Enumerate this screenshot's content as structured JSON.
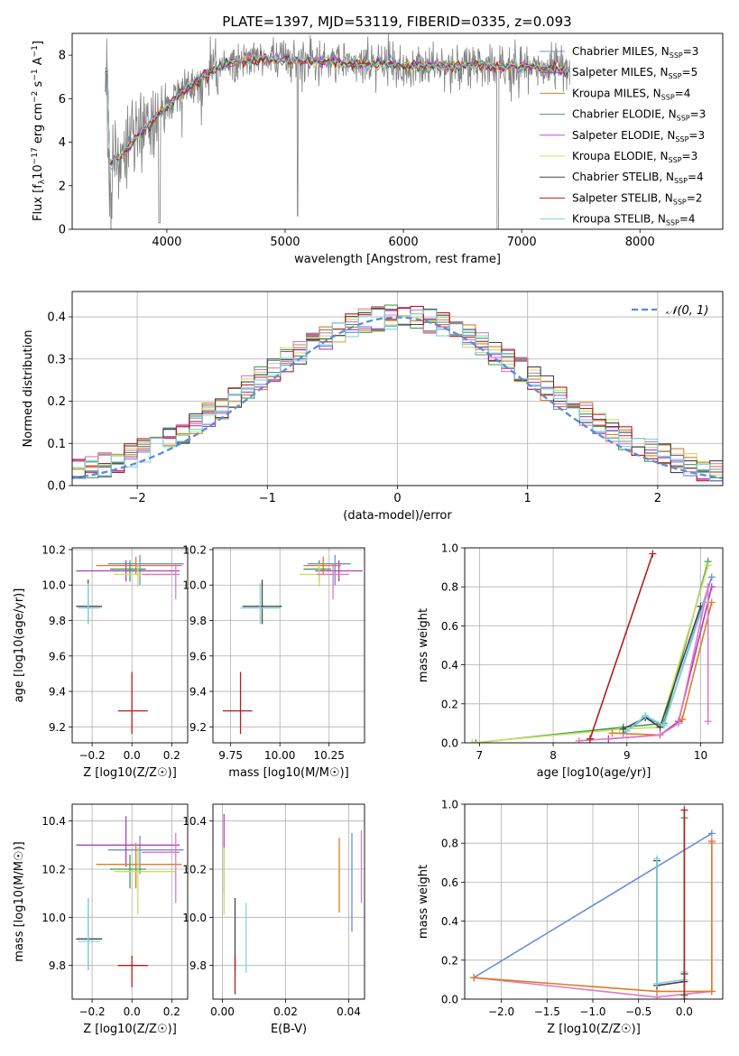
{
  "figure_title": "PLATE=1397, MJD=53119, FIBERID=0335, z=0.093",
  "colors": {
    "chabrier_miles": "#6a8fd8",
    "salpeter_miles": "#b03fb8",
    "kroupa_miles": "#e07b24",
    "chabrier_elodie": "#3f9b5a",
    "salpeter_elodie": "#c44fd0",
    "kroupa_elodie": "#c8e060",
    "chabrier_stelib": "#444444",
    "salpeter_stelib": "#b51e1e",
    "kroupa_stelib": "#7fd4e0",
    "pink": "#e377c2",
    "data": "#808080",
    "normal": "#5b8bd6"
  },
  "chart_data": [
    {
      "id": "spectrum",
      "type": "line",
      "title": "PLATE=1397, MJD=53119, FIBERID=0335, z=0.093",
      "xlabel": "wavelength [Angstrom, rest frame]",
      "ylabel": "Flux [f_λ 10^-17 erg cm^-2 s^-1 A^-1]",
      "xlim": [
        3200,
        8700
      ],
      "ylim": [
        0,
        9
      ],
      "xticks": [
        "4000",
        "5000",
        "6000",
        "7000",
        "8000"
      ],
      "yticks": [
        "0",
        "2",
        "4",
        "6",
        "8"
      ],
      "grid": false,
      "legend_position": "upper right",
      "series": [
        {
          "name": "Chabrier MILES, N_SSP=3",
          "color": "#6a8fd8"
        },
        {
          "name": "Salpeter MILES, N_SSP=5",
          "color": "#b03fb8"
        },
        {
          "name": "Kroupa MILES, N_SSP=4",
          "color": "#e07b24"
        },
        {
          "name": "Chabrier ELODIE, N_SSP=3",
          "color": "#3f9b5a"
        },
        {
          "name": "Salpeter ELODIE, N_SSP=3",
          "color": "#c44fd0"
        },
        {
          "name": "Kroupa ELODIE, N_SSP=3",
          "color": "#c8e060"
        },
        {
          "name": "Chabrier STELIB, N_SSP=4",
          "color": "#444444"
        },
        {
          "name": "Salpeter STELIB, N_SSP=2",
          "color": "#b51e1e"
        },
        {
          "name": "Kroupa STELIB, N_SSP=4",
          "color": "#7fd4e0"
        }
      ],
      "continuum": {
        "x": [
          3500,
          3600,
          3700,
          3800,
          3900,
          4000,
          4100,
          4200,
          4300,
          4400,
          4500,
          4600,
          4800,
          5000,
          5200,
          5400,
          5600,
          5800,
          6000,
          6200,
          6400,
          6600,
          6800,
          7000,
          7200,
          7400
        ],
        "y": [
          3.0,
          3.3,
          3.9,
          4.6,
          5.1,
          5.6,
          6.2,
          6.6,
          7.0,
          7.3,
          7.6,
          7.7,
          7.8,
          7.8,
          7.7,
          7.7,
          7.6,
          7.6,
          7.5,
          7.5,
          7.5,
          7.5,
          7.5,
          7.5,
          7.4,
          7.3
        ]
      }
    },
    {
      "id": "residuals",
      "type": "bar",
      "xlabel": "(data-model)/error",
      "ylabel": "Normed distribution",
      "xlim": [
        -2.5,
        2.5
      ],
      "ylim": [
        0,
        0.46
      ],
      "xticks": [
        "−2",
        "−1",
        "0",
        "1",
        "2"
      ],
      "yticks": [
        "0.0",
        "0.1",
        "0.2",
        "0.3",
        "0.4"
      ],
      "grid": true,
      "legend_position": "upper right",
      "legend": "𝒩(0, 1)",
      "bin_width": 0.1
    },
    {
      "id": "age_vs_Z",
      "type": "scatter",
      "xlabel": "Z [log10(Z/Z☉)]",
      "ylabel": "age  [log10(age/yr)]",
      "xlim": [
        -0.3,
        0.28
      ],
      "ylim": [
        9.11,
        10.21
      ],
      "xticks": [
        "−0.2",
        "0.0",
        "0.2"
      ],
      "yticks": [
        "9.2",
        "9.4",
        "9.6",
        "9.8",
        "10.0",
        "10.2"
      ],
      "grid": true,
      "points": [
        {
          "x": 0.04,
          "y": 10.12,
          "xerr": [
            0.16,
            0.22
          ],
          "yerr": [
            0.12,
            0.05
          ],
          "color": "#6a8fd8"
        },
        {
          "x": -0.03,
          "y": 10.08,
          "xerr": [
            0.25,
            0.27
          ],
          "yerr": [
            0.06,
            0.06
          ],
          "color": "#b03fb8"
        },
        {
          "x": 0.02,
          "y": 10.11,
          "xerr": [
            0.2,
            0.23
          ],
          "yerr": [
            0.05,
            0.05
          ],
          "color": "#e07b24"
        },
        {
          "x": -0.01,
          "y": 10.09,
          "xerr": [
            0.1,
            0.08
          ],
          "yerr": [
            0.07,
            0.05
          ],
          "color": "#3f9b5a"
        },
        {
          "x": 0.03,
          "y": 10.06,
          "xerr": [
            0.12,
            0.19
          ],
          "yerr": [
            0.07,
            0.06
          ],
          "color": "#c8e060"
        },
        {
          "x": 0.22,
          "y": 10.06,
          "xerr": [
            0.17,
            0.02
          ],
          "yerr": [
            0.14,
            0.06
          ],
          "color": "#e377c2"
        },
        {
          "x": -0.22,
          "y": 9.88,
          "xerr": [
            0.06,
            0.07
          ],
          "yerr": [
            0.1,
            0.15
          ],
          "color": "#444444"
        },
        {
          "x": -0.22,
          "y": 9.87,
          "xerr": [
            0.05,
            0.06
          ],
          "yerr": [
            0.09,
            0.14
          ],
          "color": "#7fd4e0"
        },
        {
          "x": 0.0,
          "y": 9.29,
          "xerr": [
            0.07,
            0.08
          ],
          "yerr": [
            0.13,
            0.22
          ],
          "color": "#b51e1e"
        }
      ]
    },
    {
      "id": "age_vs_mass",
      "type": "scatter",
      "xlabel": "mass [log10(M/M☉)]",
      "ylabel": "",
      "xlim": [
        9.66,
        10.43
      ],
      "ylim": [
        9.11,
        10.21
      ],
      "xticks": [
        "9.75",
        "10.00",
        "10.25"
      ],
      "yticks": [
        "9.2",
        "9.4",
        "9.6",
        "9.8",
        "10.0",
        "10.2"
      ],
      "grid": true,
      "points": [
        {
          "x": 10.28,
          "y": 10.12,
          "xerr": [
            0.14,
            0.08
          ],
          "yerr": [
            0.12,
            0.05
          ],
          "color": "#6a8fd8"
        },
        {
          "x": 10.3,
          "y": 10.08,
          "xerr": [
            0.12,
            0.12
          ],
          "yerr": [
            0.06,
            0.06
          ],
          "color": "#b03fb8"
        },
        {
          "x": 10.22,
          "y": 10.11,
          "xerr": [
            0.1,
            0.09
          ],
          "yerr": [
            0.05,
            0.05
          ],
          "color": "#e07b24"
        },
        {
          "x": 10.2,
          "y": 10.09,
          "xerr": [
            0.08,
            0.06
          ],
          "yerr": [
            0.07,
            0.05
          ],
          "color": "#3f9b5a"
        },
        {
          "x": 10.2,
          "y": 10.06,
          "xerr": [
            0.1,
            0.1
          ],
          "yerr": [
            0.07,
            0.06
          ],
          "color": "#c8e060"
        },
        {
          "x": 10.27,
          "y": 10.06,
          "xerr": [
            0.08,
            0.08
          ],
          "yerr": [
            0.14,
            0.06
          ],
          "color": "#e377c2"
        },
        {
          "x": 9.91,
          "y": 9.88,
          "xerr": [
            0.1,
            0.1
          ],
          "yerr": [
            0.1,
            0.15
          ],
          "color": "#444444"
        },
        {
          "x": 9.9,
          "y": 9.87,
          "xerr": [
            0.1,
            0.1
          ],
          "yerr": [
            0.09,
            0.14
          ],
          "color": "#7fd4e0"
        },
        {
          "x": 9.8,
          "y": 9.29,
          "xerr": [
            0.09,
            0.06
          ],
          "yerr": [
            0.13,
            0.22
          ],
          "color": "#b51e1e"
        }
      ]
    },
    {
      "id": "massweight_vs_age",
      "type": "line",
      "xlabel": "age  [log10(age/yr)]",
      "ylabel": "mass weight",
      "xlim": [
        6.8,
        10.3
      ],
      "ylim": [
        0,
        1
      ],
      "xticks": [
        "7",
        "8",
        "9",
        "10"
      ],
      "yticks": [
        "0.0",
        "0.2",
        "0.4",
        "0.6",
        "0.8",
        "1.0"
      ],
      "grid": true,
      "series": [
        {
          "color": "#6a8fd8",
          "x": [
            8.95,
            9.25,
            9.5,
            10.15
          ],
          "y": [
            0.05,
            0.13,
            0.09,
            0.85
          ]
        },
        {
          "color": "#3f9b5a",
          "x": [
            6.95,
            8.95,
            9.5,
            10.1
          ],
          "y": [
            0.0,
            0.08,
            0.1,
            0.93
          ]
        },
        {
          "color": "#c8e060",
          "x": [
            6.9,
            8.9,
            9.45,
            10.1
          ],
          "y": [
            0.0,
            0.07,
            0.08,
            0.91
          ]
        },
        {
          "color": "#444444",
          "x": [
            8.95,
            9.25,
            9.45,
            10.0
          ],
          "y": [
            0.07,
            0.13,
            0.08,
            0.7
          ]
        },
        {
          "color": "#7fd4e0",
          "x": [
            9.0,
            9.25,
            9.5,
            10.05
          ],
          "y": [
            0.06,
            0.14,
            0.09,
            0.72
          ]
        },
        {
          "color": "#e07b24",
          "x": [
            8.8,
            9.45,
            9.75,
            10.15
          ],
          "y": [
            0.05,
            0.04,
            0.12,
            0.72
          ]
        },
        {
          "color": "#b03fb8",
          "x": [
            8.75,
            9.45,
            9.7,
            10.15
          ],
          "y": [
            0.02,
            0.04,
            0.11,
            0.8
          ]
        },
        {
          "color": "#e377c2",
          "x": [
            8.35,
            9.45,
            9.7,
            10.1,
            10.1
          ],
          "y": [
            0.01,
            0.04,
            0.1,
            0.8,
            0.11
          ]
        },
        {
          "color": "#b51e1e",
          "x": [
            8.5,
            9.35
          ],
          "y": [
            0.02,
            0.97
          ]
        }
      ]
    },
    {
      "id": "mass_vs_Z",
      "type": "scatter",
      "xlabel": "Z [log10(Z/Z☉)]",
      "ylabel": "mass [log10(M/M☉)]",
      "xlim": [
        -0.3,
        0.28
      ],
      "ylim": [
        9.66,
        10.47
      ],
      "xticks": [
        "−0.2",
        "0.0",
        "0.2"
      ],
      "yticks": [
        "9.8",
        "10.0",
        "10.2",
        "10.4"
      ],
      "grid": true,
      "points": [
        {
          "x": 0.04,
          "y": 10.28,
          "xerr": [
            0.16,
            0.22
          ],
          "yerr": [
            0.1,
            0.06
          ],
          "color": "#6a8fd8"
        },
        {
          "x": -0.03,
          "y": 10.3,
          "xerr": [
            0.25,
            0.27
          ],
          "yerr": [
            0.09,
            0.12
          ],
          "color": "#b03fb8"
        },
        {
          "x": 0.02,
          "y": 10.22,
          "xerr": [
            0.2,
            0.23
          ],
          "yerr": [
            0.1,
            0.09
          ],
          "color": "#e07b24"
        },
        {
          "x": -0.01,
          "y": 10.2,
          "xerr": [
            0.1,
            0.08
          ],
          "yerr": [
            0.08,
            0.06
          ],
          "color": "#3f9b5a"
        },
        {
          "x": 0.03,
          "y": 10.19,
          "xerr": [
            0.12,
            0.19
          ],
          "yerr": [
            0.18,
            0.1
          ],
          "color": "#c8e060"
        },
        {
          "x": 0.22,
          "y": 10.27,
          "xerr": [
            0.17,
            0.02
          ],
          "yerr": [
            0.21,
            0.08
          ],
          "color": "#e377c2"
        },
        {
          "x": -0.22,
          "y": 9.91,
          "xerr": [
            0.06,
            0.07
          ],
          "yerr": [
            0.13,
            0.17
          ],
          "color": "#444444"
        },
        {
          "x": -0.22,
          "y": 9.9,
          "xerr": [
            0.05,
            0.06
          ],
          "yerr": [
            0.12,
            0.18
          ],
          "color": "#7fd4e0"
        },
        {
          "x": 0.0,
          "y": 9.8,
          "xerr": [
            0.07,
            0.08
          ],
          "yerr": [
            0.09,
            0.04
          ],
          "color": "#b51e1e"
        }
      ]
    },
    {
      "id": "mass_vs_ebv",
      "type": "scatter",
      "xlabel": "E(B-V)",
      "ylabel": "",
      "xlim": [
        -0.003,
        0.045
      ],
      "ylim": [
        9.66,
        10.47
      ],
      "xticks": [
        "0.00",
        "0.02",
        "0.04"
      ],
      "yticks": [
        "9.8",
        "10.0",
        "10.2",
        "10.4"
      ],
      "grid": true,
      "points": [
        {
          "x": 0.041,
          "y": 10.14,
          "yerr": [
            0.2,
            0.21
          ],
          "color": "#6a8fd8"
        },
        {
          "x": 0.0005,
          "y": 10.3,
          "yerr": [
            0.03,
            0.13
          ],
          "color": "#b03fb8"
        },
        {
          "x": 0.037,
          "y": 10.17,
          "yerr": [
            0.15,
            0.16
          ],
          "color": "#e07b24"
        },
        {
          "x": 0.0005,
          "y": 10.2,
          "yerr": [
            0.1,
            0.07
          ],
          "color": "#3f9b5a"
        },
        {
          "x": 0.0005,
          "y": 10.19,
          "yerr": [
            0.18,
            0.1
          ],
          "color": "#c8e060"
        },
        {
          "x": 0.044,
          "y": 10.21,
          "yerr": [
            0.15,
            0.15
          ],
          "color": "#e377c2"
        },
        {
          "x": 0.004,
          "y": 9.93,
          "yerr": [
            0.15,
            0.15
          ],
          "color": "#444444"
        },
        {
          "x": 0.0075,
          "y": 9.93,
          "yerr": [
            0.16,
            0.13
          ],
          "color": "#7fd4e0"
        },
        {
          "x": 0.004,
          "y": 9.76,
          "yerr": [
            0.08,
            0.08
          ],
          "color": "#b51e1e"
        }
      ]
    },
    {
      "id": "massweight_vs_Z",
      "type": "line",
      "xlabel": "Z [log10(Z/Z☉)]",
      "ylabel": "mass weight",
      "xlim": [
        -2.4,
        0.42
      ],
      "ylim": [
        0,
        1
      ],
      "xticks": [
        "−2.0",
        "−1.5",
        "−1.0",
        "−0.5",
        "0.0"
      ],
      "yticks": [
        "0.0",
        "0.2",
        "0.4",
        "0.6",
        "0.8",
        "1.0"
      ],
      "grid": true,
      "series": [
        {
          "color": "#6a8fd8",
          "x": [
            -2.3,
            0.3
          ],
          "y": [
            0.11,
            0.85
          ]
        },
        {
          "color": "#e377c2",
          "x": [
            -2.3,
            -0.3,
            0.3,
            0.3
          ],
          "y": [
            0.11,
            0.01,
            0.04,
            0.8
          ]
        },
        {
          "color": "#e07b24",
          "x": [
            -2.3,
            -0.3,
            0.3,
            0.3
          ],
          "y": [
            0.11,
            0.04,
            0.04,
            0.81
          ]
        },
        {
          "color": "#444444",
          "x": [
            -0.3,
            -0.3,
            0.0,
            0.0
          ],
          "y": [
            0.71,
            0.07,
            0.09,
            0.13
          ]
        },
        {
          "color": "#7fd4e0",
          "x": [
            -0.3,
            -0.3,
            0.0,
            0.0
          ],
          "y": [
            0.72,
            0.08,
            0.1,
            0.14
          ]
        },
        {
          "color": "#3f9b5a",
          "x": [
            0.0,
            0.0
          ],
          "y": [
            0.02,
            0.93
          ]
        },
        {
          "color": "#b51e1e",
          "x": [
            0.0,
            0.0
          ],
          "y": [
            0.0,
            0.97
          ]
        }
      ]
    }
  ]
}
